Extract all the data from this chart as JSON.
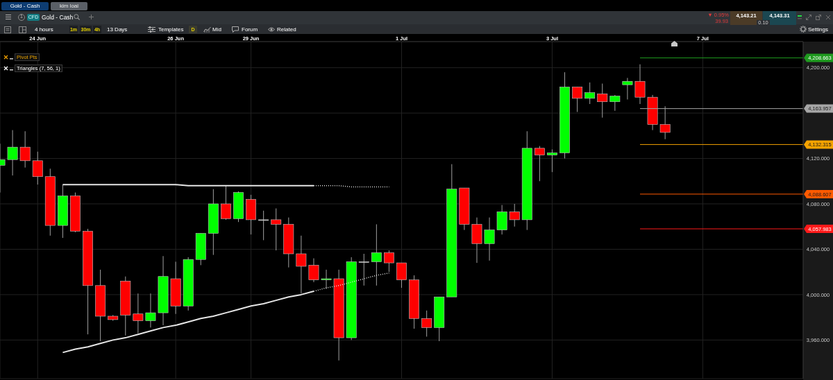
{
  "chart_data": {
    "type": "candlestick",
    "title": "Gold - Cash",
    "categories": [
      null,
      null,
      null,
      "24 Jun",
      null,
      null,
      null,
      null,
      null,
      null,
      null,
      null,
      null,
      null,
      "26 Jun",
      null,
      null,
      null,
      null,
      null,
      "29 Jun",
      null,
      null,
      null,
      null,
      null,
      null,
      null,
      null,
      null,
      null,
      null,
      "1 Jul",
      null,
      null,
      null,
      null,
      null,
      null,
      null,
      null,
      null,
      null,
      null,
      "3 Jul",
      null,
      null,
      null,
      null,
      null,
      null,
      null,
      null,
      null,
      null,
      null,
      "7 Jul",
      null,
      null,
      null,
      null,
      null,
      null,
      null,
      null
    ],
    "ohlc": [
      [
        4114,
        4133,
        4090,
        4119
      ],
      [
        4119,
        4145,
        4105,
        4130
      ],
      [
        4130,
        4144,
        4112,
        4118
      ],
      [
        4118,
        4126,
        4097,
        4104
      ],
      [
        4104,
        4111,
        4052,
        4061
      ],
      [
        4061,
        4097,
        4050,
        4087
      ],
      [
        4087,
        4090,
        4055,
        4056
      ],
      [
        4056,
        4058,
        3965,
        4008
      ],
      [
        4008,
        4022,
        3959,
        3981
      ],
      [
        3981,
        3982,
        3977,
        3978
      ],
      [
        4012,
        4016,
        3964,
        3982
      ],
      [
        3983,
        4001,
        3966,
        3977
      ],
      [
        3977,
        4001,
        3971,
        3984
      ],
      [
        3984,
        4034,
        3973,
        4016
      ],
      [
        4014,
        4029,
        3983,
        3990
      ],
      [
        3990,
        4033,
        3986,
        4031
      ],
      [
        4031,
        4054,
        4026,
        4054
      ],
      [
        4054,
        4093,
        4035,
        4080
      ],
      [
        4080,
        4096,
        4066,
        4067
      ],
      [
        4067,
        4091,
        4064,
        4090
      ],
      [
        4084,
        4088,
        4053,
        4066
      ],
      [
        4066,
        4074,
        4048,
        4066
      ],
      [
        4066,
        4076,
        4039,
        4062
      ],
      [
        4062,
        4068,
        4024,
        4036
      ],
      [
        4036,
        4052,
        4001,
        4025
      ],
      [
        4026,
        4032,
        4011,
        4013
      ],
      [
        4013,
        4022,
        4005,
        4014
      ],
      [
        4014,
        4022,
        3942,
        3962
      ],
      [
        3962,
        4033,
        3960,
        4029
      ],
      [
        4029,
        4036,
        4008,
        4029
      ],
      [
        4029,
        4062,
        4008,
        4037
      ],
      [
        4037,
        4039,
        4020,
        4028
      ],
      [
        4028,
        4028,
        4006,
        4013
      ],
      [
        4013,
        4017,
        3970,
        3979
      ],
      [
        3979,
        3986,
        3963,
        3971
      ],
      [
        3971,
        3998,
        3959,
        3998
      ],
      [
        3998,
        4115,
        3998,
        4093
      ],
      [
        4094,
        4094,
        4057,
        4062
      ],
      [
        4062,
        4068,
        4028,
        4045
      ],
      [
        4045,
        4068,
        4030,
        4057
      ],
      [
        4057,
        4079,
        4053,
        4073
      ],
      [
        4073,
        4080,
        4060,
        4066
      ],
      [
        4066,
        4144,
        4057,
        4129
      ],
      [
        4129,
        4131,
        4100,
        4123
      ],
      [
        4123,
        4128,
        4108,
        4125
      ],
      [
        4125,
        4196,
        4120,
        4183
      ],
      [
        4183,
        4183,
        4161,
        4173
      ],
      [
        4173,
        4187,
        4168,
        4178
      ],
      [
        4177,
        4186,
        4156,
        4170
      ],
      [
        4170,
        4176,
        4162,
        4175
      ],
      [
        4185,
        4191,
        4172,
        4188
      ],
      [
        4188,
        4203,
        4168,
        4174
      ],
      [
        4174,
        4176,
        4145,
        4150
      ],
      [
        4150,
        4166,
        4137,
        4143
      ],
      null,
      null,
      null,
      null,
      null,
      null,
      null,
      null,
      null,
      null,
      null
    ],
    "colors": [
      "#00ff00",
      "#00ff00",
      "#ff0000",
      "#ff0000",
      "#ff0000",
      "#00ff00",
      "#ff0000",
      "#ff0000",
      "#ff0000",
      "#ff0000",
      "#ff0000",
      "#ff0000",
      "#00ff00",
      "#00ff00",
      "#ff0000",
      "#00ff00",
      "#00ff00",
      "#00ff00",
      "#ff0000",
      "#00ff00",
      "#ff0000",
      "#d9d9d9",
      "#ff0000",
      "#ff0000",
      "#ff0000",
      "#ff0000",
      "#00ff00",
      "#ff0000",
      "#00ff00",
      "#d9d9d9",
      "#00ff00",
      "#ff0000",
      "#ff0000",
      "#ff0000",
      "#ff0000",
      "#00ff00",
      "#00ff00",
      "#ff0000",
      "#ff0000",
      "#00ff00",
      "#00ff00",
      "#ff0000",
      "#00ff00",
      "#ff0000",
      "#00ff00",
      "#00ff00",
      "#ff0000",
      "#00ff00",
      "#ff0000",
      "#00ff00",
      "#00ff00",
      "#ff0000",
      "#ff0000",
      "#ff0000",
      null,
      null,
      null,
      null,
      null,
      null,
      null,
      null,
      null,
      null,
      null
    ],
    "series": [
      {
        "type": "line",
        "color": "#e6e6e6",
        "line_style": "solid",
        "values": [
          null,
          null,
          null,
          null,
          null,
          4097,
          4097,
          4097,
          4097,
          4097,
          4097,
          4097,
          4097,
          4097,
          4097,
          4096,
          4096,
          4096,
          4096,
          4096,
          4096,
          4096,
          4096,
          4096,
          4096,
          4096,
          null,
          null,
          null,
          null,
          null,
          null,
          null,
          null,
          null,
          null,
          null,
          null,
          null,
          null,
          null,
          null,
          null,
          null,
          null,
          null,
          null,
          null,
          null,
          null,
          null,
          null,
          null,
          null,
          null,
          null,
          null,
          null,
          null,
          null,
          null,
          null,
          null,
          null,
          null
        ]
      },
      {
        "type": "line",
        "color": "#e6e6e6",
        "line_style": "dotted",
        "values": [
          null,
          null,
          null,
          null,
          null,
          null,
          null,
          null,
          null,
          null,
          null,
          null,
          null,
          null,
          null,
          null,
          null,
          null,
          null,
          null,
          null,
          null,
          null,
          null,
          null,
          4096,
          4096,
          4096,
          4095,
          4095,
          4095,
          4095,
          null,
          null,
          null,
          null,
          null,
          null,
          null,
          null,
          null,
          null,
          null,
          null,
          null,
          null,
          null,
          null,
          null,
          null,
          null,
          null,
          null,
          null,
          null,
          null,
          null,
          null,
          null,
          null,
          null,
          null,
          null,
          null,
          null
        ]
      },
      {
        "type": "line",
        "color": "#e6e6e6",
        "line_style": "solid",
        "values": [
          null,
          null,
          null,
          null,
          null,
          3949,
          3952,
          3954,
          3957,
          3960,
          3962,
          3965,
          3968,
          3971,
          3973,
          3976,
          3979,
          3981,
          3984,
          3987,
          3990,
          3992,
          3995,
          3998,
          4000,
          4003,
          null,
          null,
          null,
          null,
          null,
          null,
          null,
          null,
          null,
          null,
          null,
          null,
          null,
          null,
          null,
          null,
          null,
          null,
          null,
          null,
          null,
          null,
          null,
          null,
          null,
          null,
          null,
          null,
          null,
          null,
          null,
          null,
          null,
          null,
          null,
          null,
          null,
          null,
          null
        ]
      },
      {
        "type": "line",
        "color": "#e6e6e6",
        "line_style": "dotted",
        "values": [
          null,
          null,
          null,
          null,
          null,
          null,
          null,
          null,
          null,
          null,
          null,
          null,
          null,
          null,
          null,
          null,
          null,
          null,
          null,
          null,
          null,
          null,
          null,
          null,
          null,
          4003,
          4006,
          4008,
          4011,
          4014,
          4017,
          4019,
          null,
          null,
          null,
          null,
          null,
          null,
          null,
          null,
          null,
          null,
          null,
          null,
          null,
          null,
          null,
          null,
          null,
          null,
          null,
          null,
          null,
          null,
          null,
          null,
          null,
          null,
          null,
          null,
          null,
          null,
          null,
          null,
          null
        ]
      }
    ],
    "ylim": [
      3926,
      4223
    ],
    "yticks": [
      {
        "value": 3960,
        "label": "3,960.000"
      },
      {
        "value": 4000,
        "label": "4,000.000"
      },
      {
        "value": 4040,
        "label": "4,040.000"
      },
      {
        "value": 4080,
        "label": "4,080.000"
      },
      {
        "value": 4120,
        "label": "4,120.000"
      },
      {
        "value": 4160,
        "label": null
      },
      {
        "value": 4200,
        "label": "4,200.000"
      }
    ],
    "grid": true,
    "ref_lines": [
      {
        "axis": "y",
        "value": 4208.663,
        "label": "4,208.663",
        "color": "#1f9a1f"
      },
      {
        "axis": "y",
        "value": 4163.957,
        "label": "4,163.957",
        "color": "#a6a6a6"
      },
      {
        "axis": "y",
        "value": 4132.315,
        "label": "4,132.315",
        "color": "#f5a300"
      },
      {
        "axis": "y",
        "value": 4088.607,
        "label": "4,088.607",
        "color": "#ff5a00"
      },
      {
        "axis": "y",
        "value": 4057.983,
        "label": "4,057.983",
        "color": "#ff1a1a"
      }
    ],
    "annotations": [
      "Gold - Cash",
      "kim loai",
      "1",
      "CFD",
      "▼ 0.95%",
      "39.93",
      "4,143.21",
      "4,143.31",
      "0.10",
      "4 hours",
      "1m",
      "30m",
      "4h",
      "13 Days",
      "Templates",
      "D",
      "Mid",
      "Forum",
      "Related",
      "Settings",
      "Pivot Pts",
      "Triangles (7, 56, 1)"
    ]
  }
}
